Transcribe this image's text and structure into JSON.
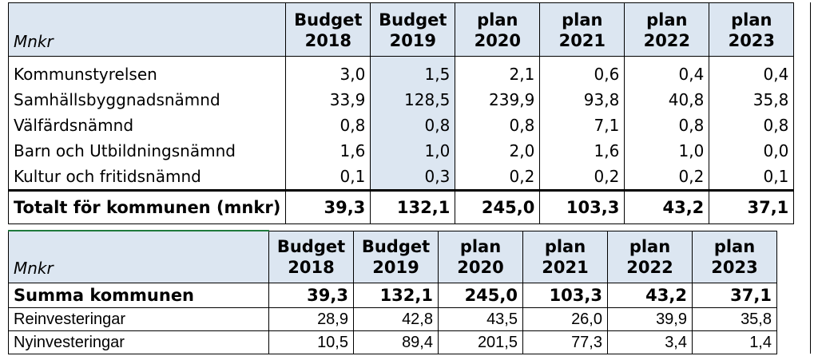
{
  "table1": {
    "header": {
      "label": "Mnkr",
      "cols": [
        {
          "l1": "Budget",
          "l2": "2018"
        },
        {
          "l1": "Budget",
          "l2": "2019"
        },
        {
          "l1": "plan",
          "l2": "2020"
        },
        {
          "l1": "plan",
          "l2": "2021"
        },
        {
          "l1": "plan",
          "l2": "2022"
        },
        {
          "l1": "plan",
          "l2": "2023"
        }
      ]
    },
    "rows": [
      {
        "label": "Kommunstyrelsen",
        "values": [
          "3,0",
          "1,5",
          "2,1",
          "0,6",
          "0,4",
          "0,4"
        ]
      },
      {
        "label": "Samhällsbyggnadsnämnd",
        "values": [
          "33,9",
          "128,5",
          "239,9",
          "93,8",
          "40,8",
          "35,8"
        ]
      },
      {
        "label": "Välfärdsnämnd",
        "values": [
          "0,8",
          "0,8",
          "0,8",
          "7,1",
          "0,8",
          "0,8"
        ]
      },
      {
        "label": "Barn och Utbildningsnämnd",
        "values": [
          "1,6",
          "1,0",
          "2,0",
          "1,6",
          "1,0",
          "0,0"
        ]
      },
      {
        "label": "Kultur och fritidsnämnd",
        "values": [
          "0,1",
          "0,3",
          "0,2",
          "0,2",
          "0,2",
          "0,1"
        ]
      }
    ],
    "total": {
      "label": "Totalt för kommunen (mnkr)",
      "values": [
        "39,3",
        "132,1",
        "245,0",
        "103,3",
        "43,2",
        "37,1"
      ]
    }
  },
  "table2": {
    "header": {
      "label": "Mnkr",
      "cols": [
        {
          "l1": "Budget",
          "l2": "2018"
        },
        {
          "l1": "Budget",
          "l2": "2019"
        },
        {
          "l1": "plan",
          "l2": "2020"
        },
        {
          "l1": "plan",
          "l2": "2021"
        },
        {
          "l1": "plan",
          "l2": "2022"
        },
        {
          "l1": "plan",
          "l2": "2023"
        }
      ]
    },
    "sum": {
      "label": "Summa kommunen",
      "values": [
        "39,3",
        "132,1",
        "245,0",
        "103,3",
        "43,2",
        "37,1"
      ]
    },
    "rows": [
      {
        "label": "Reinvesteringar",
        "values": [
          "28,9",
          "42,8",
          "43,5",
          "26,0",
          "39,9",
          "35,8"
        ]
      },
      {
        "label": "Nyinvesteringar",
        "values": [
          "10,5",
          "89,4",
          "201,5",
          "77,3",
          "3,4",
          "1,4"
        ]
      }
    ]
  },
  "colors": {
    "header_fill": "#dce6f1",
    "border": "#000000",
    "top_rule": "#1f7a3c"
  }
}
